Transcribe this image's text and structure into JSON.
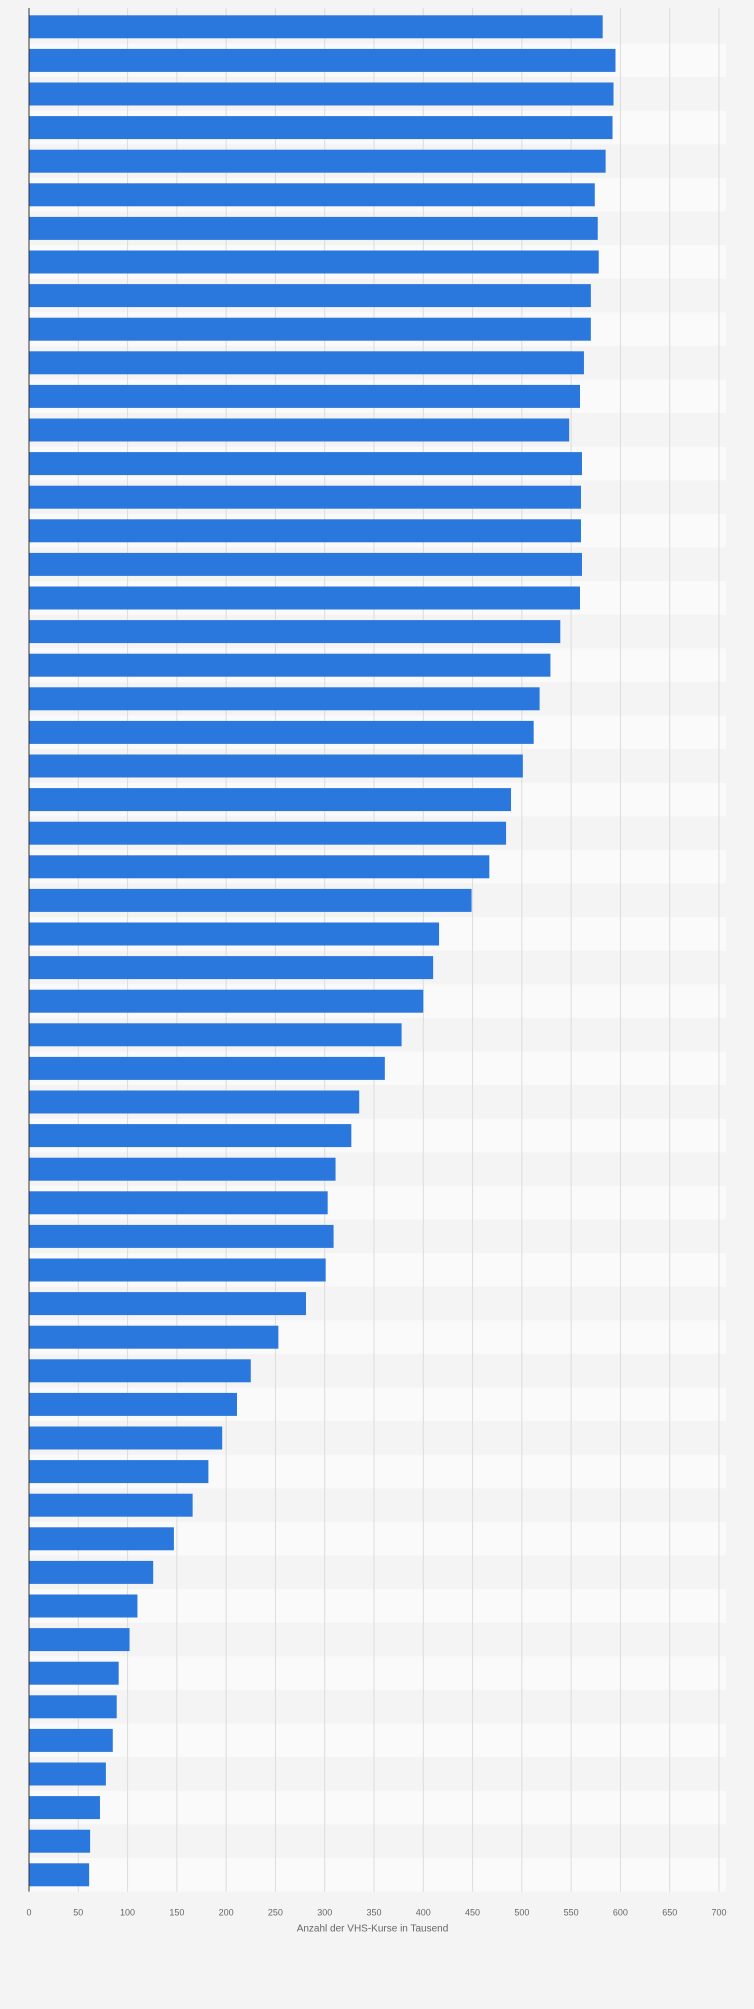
{
  "chart_data": {
    "type": "bar",
    "orientation": "horizontal",
    "title": "",
    "xlabel": "Anzahl der VHS-Kurse in Tausend",
    "ylabel": "",
    "xlim": [
      0,
      700
    ],
    "x_ticks": [
      "0",
      "50",
      "100",
      "150",
      "200",
      "250",
      "300",
      "350",
      "400",
      "450",
      "500",
      "550",
      "600",
      "650",
      "700"
    ],
    "grid": "vertical",
    "category_labels_shown": false,
    "bar_color": "#2a78de",
    "values": [
      582,
      595,
      593,
      592,
      585,
      574,
      577,
      578,
      570,
      570,
      563,
      559,
      548,
      561,
      560,
      560,
      561,
      559,
      539,
      529,
      518,
      512,
      501,
      489,
      484,
      467,
      449,
      416,
      410,
      400,
      378,
      361,
      335,
      327,
      311,
      303,
      309,
      301,
      281,
      253,
      225,
      211,
      196,
      182,
      166,
      147,
      126,
      110,
      102,
      91,
      89,
      85,
      78,
      72,
      62,
      61
    ]
  }
}
